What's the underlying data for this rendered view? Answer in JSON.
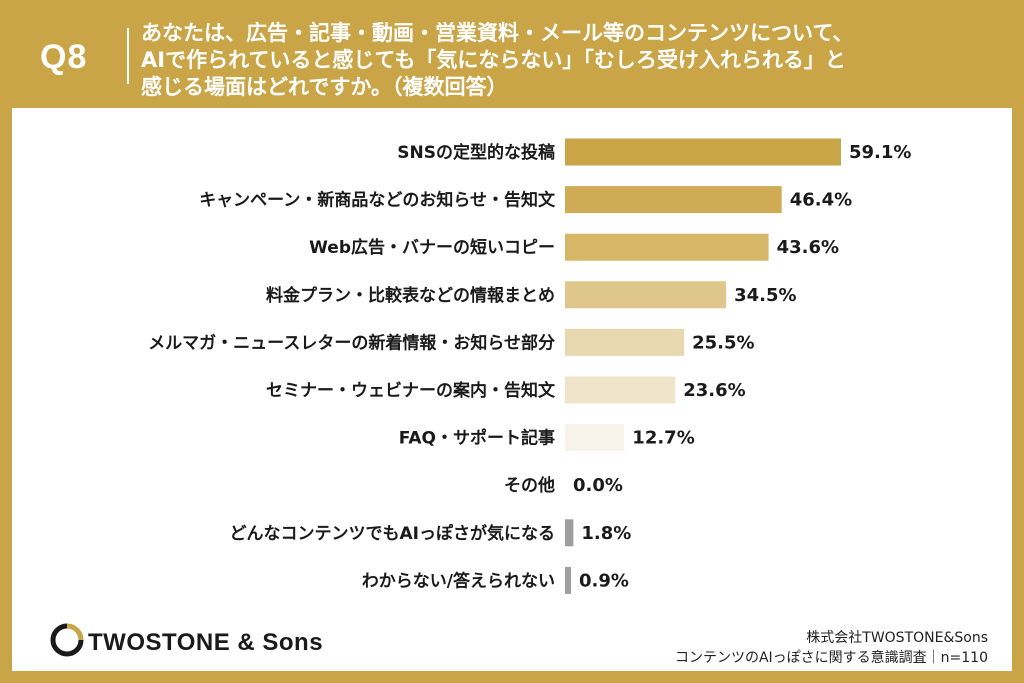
{
  "header": {
    "q_number": "Q8",
    "question_lines": [
      "あなたは、広告・記事・動画・営業資料・メール等のコンテンツについて、",
      "AIで作られていると感じても「気にならない」「むしろ受け入れられる」と",
      "感じる場面はどれですか。（複数回答）"
    ]
  },
  "colors": {
    "brand": "#c9a548",
    "panel": "#ffffff",
    "bar_ramp": [
      "#c9a548",
      "#cfab55",
      "#d6b767",
      "#dfc68a",
      "#e8d8b0",
      "#f0e5cb",
      "#f8f3ea",
      "#ffffff",
      "#9e9e9e",
      "#9e9e9e"
    ]
  },
  "chart_data": {
    "type": "bar",
    "orientation": "horizontal",
    "categories": [
      "SNSの定型的な投稿",
      "キャンペーン・新商品などのお知らせ・告知文",
      "Web広告・バナーの短いコピー",
      "料金プラン・比較表などの情報まとめ",
      "メルマガ・ニュースレターの新着情報・お知らせ部分",
      "セミナー・ウェビナーの案内・告知文",
      "FAQ・サポート記事",
      "その他",
      "どんなコンテンツでもAIっぽさが気になる",
      "わからない/答えられない"
    ],
    "values": [
      59.1,
      46.4,
      43.6,
      34.5,
      25.5,
      23.6,
      12.7,
      0.0,
      1.8,
      0.9
    ],
    "value_labels": [
      "59.1%",
      "46.4%",
      "43.6%",
      "34.5%",
      "25.5%",
      "23.6%",
      "12.7%",
      "0.0%",
      "1.8%",
      "0.9%"
    ],
    "xlim": [
      0,
      100
    ],
    "grid": false,
    "legend": "none"
  },
  "footer": {
    "logo_text": "TWOSTONE & Sons",
    "company": "株式会社TWOSTONE&Sons",
    "survey": "コンテンツのAIっぽさに関する意識調査｜n=110"
  }
}
